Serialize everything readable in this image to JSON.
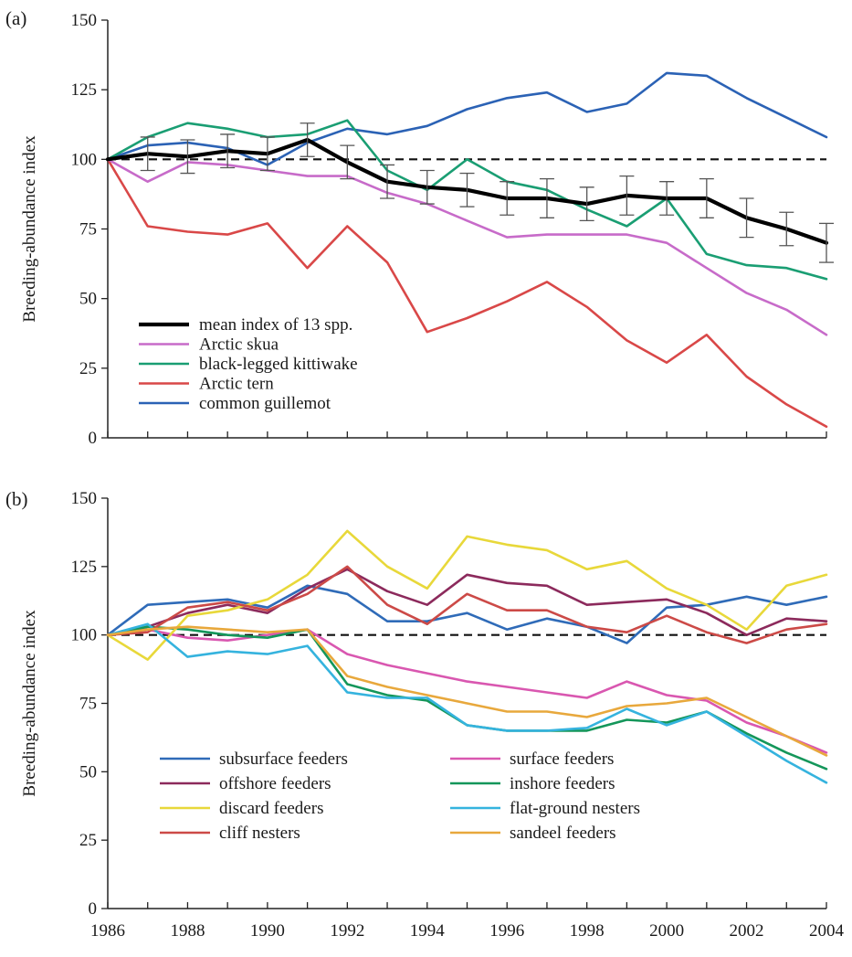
{
  "chart_data": [
    {
      "type": "line",
      "panel_label": "(a)",
      "ylabel": "Breeding-abundance index",
      "xlabel": "",
      "xlim": [
        1986,
        2004
      ],
      "ylim": [
        0,
        150
      ],
      "yticks": [
        0,
        25,
        50,
        75,
        100,
        125,
        150
      ],
      "reference_line": 100,
      "legend_position": "bottom-left",
      "x": [
        1986,
        1987,
        1988,
        1989,
        1990,
        1991,
        1992,
        1993,
        1994,
        1995,
        1996,
        1997,
        1998,
        1999,
        2000,
        2001,
        2002,
        2003,
        2004
      ],
      "series": [
        {
          "name": "mean index of 13 spp.",
          "color": "#000000",
          "values": [
            100,
            102,
            101,
            103,
            102,
            107,
            99,
            92,
            90,
            89,
            86,
            86,
            84,
            87,
            86,
            86,
            79,
            75,
            70
          ],
          "error": [
            0,
            6,
            6,
            6,
            6,
            6,
            6,
            6,
            6,
            6,
            6,
            7,
            6,
            7,
            6,
            7,
            7,
            6,
            7
          ]
        },
        {
          "name": "Arctic skua",
          "color": "#c76bc9",
          "values": [
            100,
            92,
            99,
            98,
            96,
            94,
            94,
            88,
            84,
            78,
            72,
            73,
            73,
            73,
            70,
            61,
            52,
            46,
            37
          ]
        },
        {
          "name": "black-legged kittiwake",
          "color": "#1a9e73",
          "values": [
            100,
            108,
            113,
            111,
            108,
            109,
            114,
            96,
            89,
            100,
            92,
            89,
            82,
            76,
            86,
            66,
            62,
            61,
            57
          ]
        },
        {
          "name": "Arctic tern",
          "color": "#d94848",
          "values": [
            100,
            76,
            74,
            73,
            77,
            61,
            76,
            63,
            38,
            43,
            49,
            56,
            47,
            35,
            27,
            37,
            22,
            12,
            4
          ]
        },
        {
          "name": "common guillemot",
          "color": "#2b62b5",
          "values": [
            100,
            105,
            106,
            104,
            98,
            106,
            111,
            109,
            112,
            118,
            122,
            124,
            117,
            120,
            131,
            130,
            122,
            115,
            108
          ]
        }
      ]
    },
    {
      "type": "line",
      "panel_label": "(b)",
      "ylabel": "Breeding-abundance index",
      "xlabel": "",
      "xlim": [
        1986,
        2004
      ],
      "ylim": [
        0,
        150
      ],
      "yticks": [
        0,
        25,
        50,
        75,
        100,
        125,
        150
      ],
      "xticks": [
        1986,
        1988,
        1990,
        1992,
        1994,
        1996,
        1998,
        2000,
        2002,
        2004
      ],
      "reference_line": 100,
      "legend_position": "bottom-left",
      "legend_columns": 2,
      "x": [
        1986,
        1987,
        1988,
        1989,
        1990,
        1991,
        1992,
        1993,
        1994,
        1995,
        1996,
        1997,
        1998,
        1999,
        2000,
        2001,
        2002,
        2003,
        2004
      ],
      "series": [
        {
          "name": "subsurface feeders",
          "color": "#2f6bb8",
          "values": [
            100,
            111,
            112,
            113,
            110,
            118,
            115,
            105,
            105,
            108,
            102,
            106,
            103,
            97,
            110,
            111,
            114,
            111,
            114
          ]
        },
        {
          "name": "surface feeders",
          "color": "#d957b0",
          "values": [
            100,
            102,
            99,
            98,
            100,
            102,
            93,
            89,
            86,
            83,
            81,
            79,
            77,
            83,
            78,
            76,
            68,
            63,
            57
          ]
        },
        {
          "name": "offshore feeders",
          "color": "#8c2a5c",
          "values": [
            100,
            103,
            108,
            111,
            108,
            117,
            124,
            116,
            111,
            122,
            119,
            118,
            111,
            112,
            113,
            108,
            100,
            106,
            105
          ]
        },
        {
          "name": "inshore feeders",
          "color": "#14965a",
          "values": [
            100,
            103,
            102,
            100,
            99,
            102,
            82,
            78,
            76,
            67,
            65,
            65,
            65,
            69,
            68,
            72,
            64,
            57,
            51
          ]
        },
        {
          "name": "discard feeders",
          "color": "#e8d83a",
          "values": [
            100,
            91,
            107,
            109,
            113,
            122,
            138,
            125,
            117,
            136,
            133,
            131,
            124,
            127,
            117,
            111,
            102,
            118,
            122
          ]
        },
        {
          "name": "flat-ground nesters",
          "color": "#35b3de",
          "values": [
            100,
            104,
            92,
            94,
            93,
            96,
            79,
            77,
            77,
            67,
            65,
            65,
            66,
            73,
            67,
            72,
            63,
            54,
            46
          ]
        },
        {
          "name": "cliff nesters",
          "color": "#cc4a47",
          "values": [
            100,
            101,
            110,
            112,
            109,
            115,
            125,
            111,
            104,
            115,
            109,
            109,
            103,
            101,
            107,
            101,
            97,
            102,
            104
          ]
        },
        {
          "name": "sandeel feeders",
          "color": "#e8a83c",
          "values": [
            100,
            102,
            103,
            102,
            101,
            102,
            85,
            81,
            78,
            75,
            72,
            72,
            70,
            74,
            75,
            77,
            70,
            63,
            56
          ]
        }
      ]
    }
  ]
}
